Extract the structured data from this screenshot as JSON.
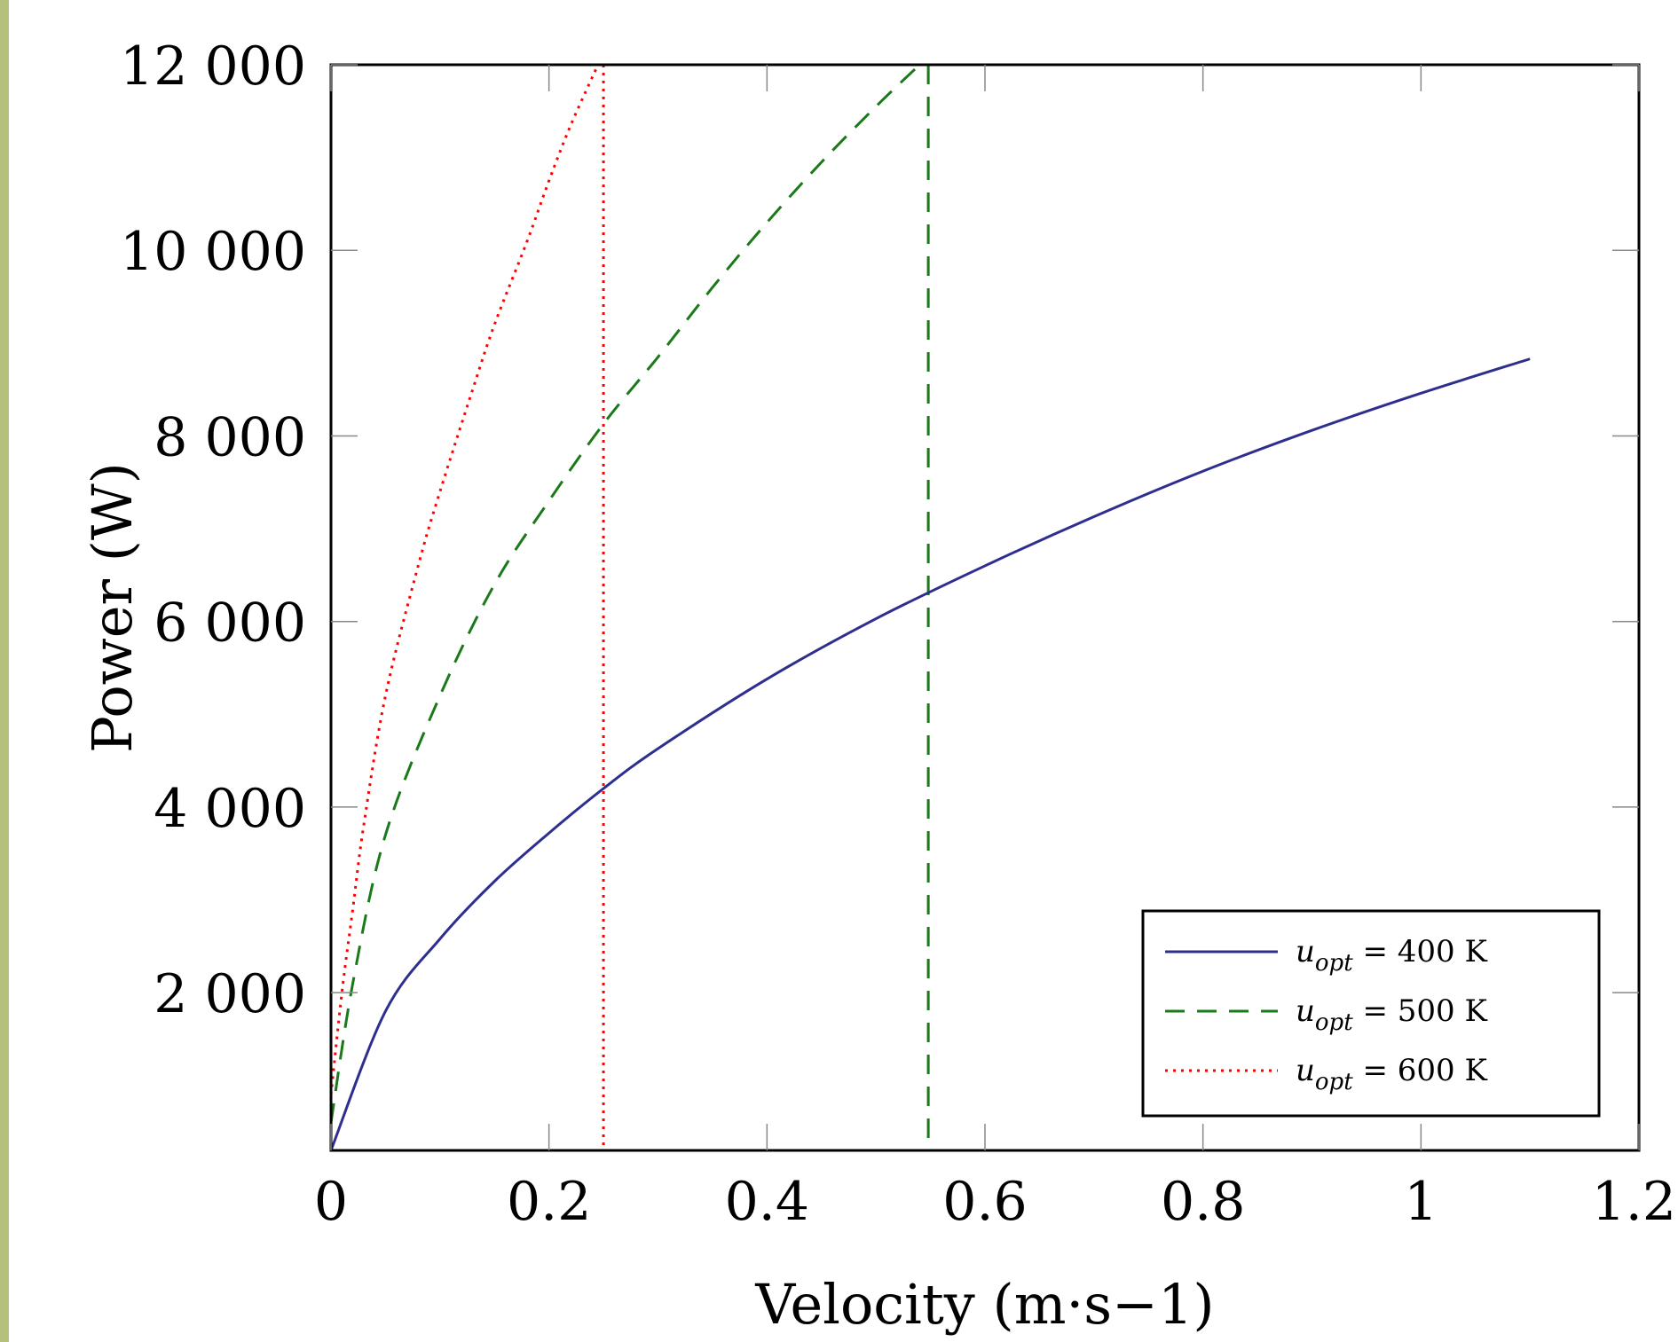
{
  "chart_data": {
    "type": "line",
    "xlabel": "Velocity (m·s−1)",
    "ylabel": "Power (W)",
    "xlim": [
      0,
      1.2
    ],
    "ylim": [
      300,
      12000
    ],
    "x_ticks": [
      0,
      0.2,
      0.4,
      0.6,
      0.8,
      1,
      1.2
    ],
    "x_tick_labels": [
      "0",
      "0.2",
      "0.4",
      "0.6",
      "0.8",
      "1",
      "1.2"
    ],
    "y_ticks": [
      2000,
      4000,
      6000,
      8000,
      10000,
      12000
    ],
    "y_tick_labels": [
      "2 000",
      "4 000",
      "6 000",
      "8 000",
      "10 000",
      "12 000"
    ],
    "grid": false,
    "legend_position": "bottom-right",
    "series": [
      {
        "name": "u_opt = 400 K",
        "color": "#2e2e8f",
        "style": "solid",
        "x": [
          0,
          0.05,
          0.1,
          0.15,
          0.2,
          0.25,
          0.3,
          0.4,
          0.5,
          0.6,
          0.7,
          0.8,
          0.9,
          1.0,
          1.1
        ],
        "y": [
          300,
          1800,
          2580,
          3200,
          3720,
          4200,
          4630,
          5380,
          6030,
          6600,
          7130,
          7620,
          8060,
          8460,
          8830
        ]
      },
      {
        "name": "u_opt = 500 K",
        "color": "#1a7a1a",
        "style": "dashed",
        "x": [
          0,
          0.02,
          0.05,
          0.1,
          0.15,
          0.2,
          0.25,
          0.3,
          0.35,
          0.4,
          0.45,
          0.5,
          0.54
        ],
        "y": [
          600,
          2100,
          3700,
          5200,
          6400,
          7300,
          8130,
          8850,
          9600,
          10300,
          10950,
          11550,
          12000
        ]
      },
      {
        "name": "u_opt = 600 K",
        "color": "#ff0000",
        "style": "dotted",
        "x": [
          0,
          0.01,
          0.02,
          0.03,
          0.05,
          0.08,
          0.1,
          0.13,
          0.15,
          0.18,
          0.2,
          0.22,
          0.245
        ],
        "y": [
          900,
          2000,
          2900,
          3800,
          5200,
          6600,
          7400,
          8500,
          9200,
          10100,
          10750,
          11350,
          12000
        ]
      }
    ],
    "vertical_lines": [
      {
        "x": 0.25,
        "color": "#ff0000",
        "style": "dotted"
      },
      {
        "x": 0.548,
        "color": "#1a7a1a",
        "style": "dashed"
      }
    ],
    "legend": {
      "entries": [
        {
          "var": "u",
          "sub": "opt",
          "rhs": "= 400 K"
        },
        {
          "var": "u",
          "sub": "opt",
          "rhs": "= 500 K"
        },
        {
          "var": "u",
          "sub": "opt",
          "rhs": "= 600 K"
        }
      ]
    }
  }
}
